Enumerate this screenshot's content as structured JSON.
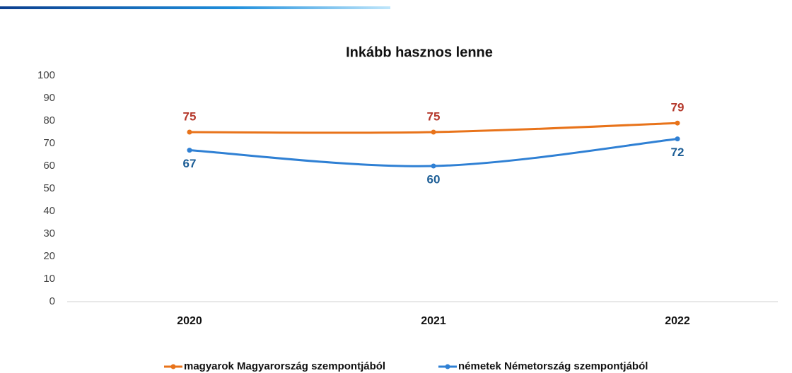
{
  "chart_data": {
    "type": "line",
    "title": "Inkább hasznos lenne",
    "categories": [
      "2020",
      "2021",
      "2022"
    ],
    "series": [
      {
        "name": "magyarok Magyarország szempontjából",
        "color": "#e8731a",
        "label_color": "#b5392c",
        "values": [
          75,
          75,
          79
        ]
      },
      {
        "name": "németek Németország szempontjából",
        "color": "#2f80d4",
        "label_color": "#1d5e96",
        "values": [
          67,
          60,
          72
        ]
      }
    ],
    "ylim": [
      0,
      100
    ],
    "yticks": [
      0,
      10,
      20,
      30,
      40,
      50,
      60,
      70,
      80,
      90,
      100
    ],
    "grid": false,
    "legend": "bottom"
  }
}
